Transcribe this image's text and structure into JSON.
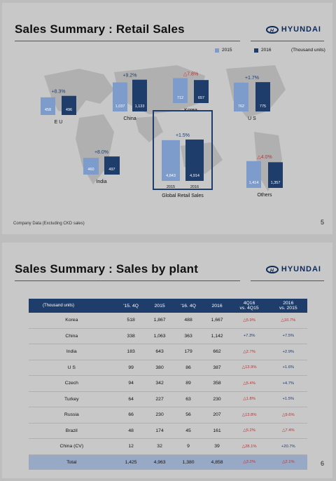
{
  "slide1": {
    "title": "Sales Summary : Retail Sales",
    "brand": "HYUNDAI",
    "brand_logo": "H",
    "legend": {
      "a": "2015",
      "b": "2016",
      "units": "(Thousand units)"
    },
    "footnote": "Company Data (Excluding CKD sales)",
    "page": "5"
  },
  "slide2": {
    "title": "Sales Summary : Sales by plant",
    "brand": "HYUNDAI",
    "brand_logo": "H",
    "page": "6"
  },
  "chart_data": [
    {
      "type": "bar",
      "title": "Sales Summary : Retail Sales",
      "units": "(Thousand units)",
      "categories": [
        "E U",
        "China",
        "Korea",
        "U S",
        "India",
        "Global Retail Sales",
        "Others"
      ],
      "series": [
        {
          "name": "2015",
          "values": [
            458,
            1037,
            712,
            762,
            460,
            4843,
            1414
          ]
        },
        {
          "name": "2016",
          "values": [
            496,
            1133,
            657,
            775,
            497,
            4914,
            1357
          ]
        }
      ],
      "growth": [
        "+8.3%",
        "+9.2%",
        "△7.8%",
        "+1.7%",
        "+8.0%",
        "+1.5%",
        "△4.0%"
      ],
      "growth_negative": [
        false,
        false,
        true,
        false,
        false,
        false,
        true
      ],
      "year_labels": [
        "2015",
        "2016"
      ]
    },
    {
      "type": "table",
      "title": "Sales Summary : Sales by plant",
      "columns": [
        "(Thousand units)",
        "'15. 4Q",
        "2015",
        "'16. 4Q",
        "2016",
        "4Q16 vs. 4Q15",
        "2016 vs. 2015"
      ],
      "rows": [
        [
          "Korea",
          "518",
          "1,867",
          "488",
          "1,667",
          "△5.9%",
          "△10.7%"
        ],
        [
          "China",
          "338",
          "1,063",
          "363",
          "1,142",
          "+7.3%",
          "+7.5%"
        ],
        [
          "India",
          "183",
          "643",
          "179",
          "662",
          "△2.7%",
          "+2.9%"
        ],
        [
          "U S",
          "99",
          "380",
          "86",
          "387",
          "△13.9%",
          "+1.6%"
        ],
        [
          "Czech",
          "94",
          "342",
          "89",
          "358",
          "△5.4%",
          "+4.7%"
        ],
        [
          "Turkey",
          "64",
          "227",
          "63",
          "230",
          "△1.8%",
          "+1.5%"
        ],
        [
          "Russia",
          "66",
          "230",
          "56",
          "207",
          "△13.8%",
          "△9.6%"
        ],
        [
          "Brazil",
          "48",
          "174",
          "45",
          "161",
          "△5.2%",
          "△7.4%"
        ],
        [
          "China (CV)",
          "12",
          "32",
          "9",
          "39",
          "△28.1%",
          "+20.7%"
        ]
      ],
      "total": [
        "Total",
        "1,425",
        "4,963",
        "1,380",
        "4,858",
        "△3.2%",
        "△2.1%"
      ]
    }
  ],
  "colors": {
    "bar_2015": "#7e9ccb",
    "bar_2016": "#1f3d6b",
    "negative": "#c03030",
    "header": "#1f3d6b",
    "total_row": "#98a9c6"
  }
}
